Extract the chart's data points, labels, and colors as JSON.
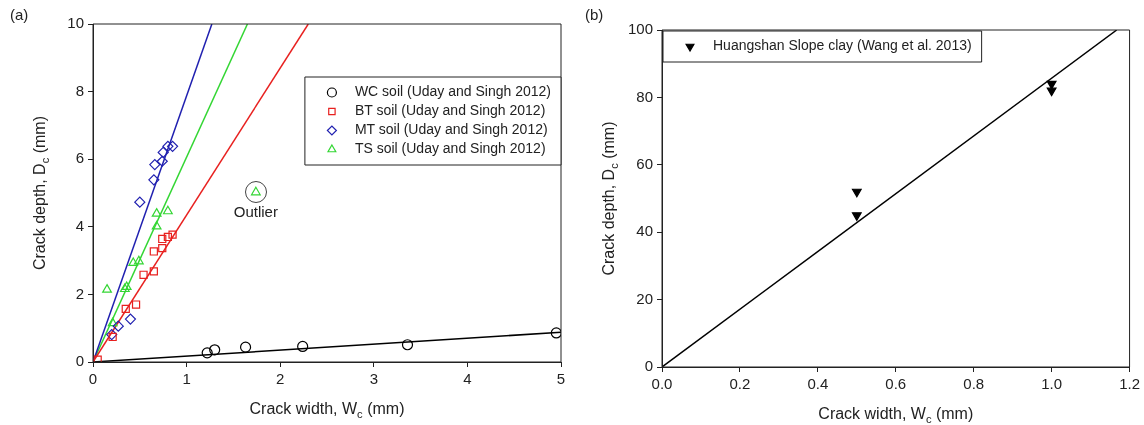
{
  "chart_data": [
    {
      "type": "scatter",
      "xlabel": "Crack width, W$_{c}$ (mm)",
      "ylabel": "Crack depth, D$_{c}$ (mm)",
      "xlim": [
        0,
        5
      ],
      "ylim": [
        0,
        10
      ],
      "xticks": [
        0,
        1,
        2,
        3,
        4,
        5
      ],
      "yticks": [
        0,
        2,
        4,
        6,
        8,
        10
      ],
      "grid": false,
      "legend": "right",
      "annotations": [
        "(a)",
        {
          "text": "Outlier",
          "x": 1.74,
          "y": 5.02
        }
      ],
      "series": [
        {
          "name": "WC soil (Uday and Singh 2012)",
          "color": "#000000",
          "marker": "circle",
          "x": [
            1.22,
            1.3,
            1.63,
            2.24,
            3.36,
            4.95
          ],
          "values": [
            0.27,
            0.36,
            0.44,
            0.46,
            0.51,
            0.86
          ]
        },
        {
          "name": "BT soil (Uday and Singh 2012)",
          "color": "#e8201f",
          "marker": "square",
          "x": [
            0.05,
            0.21,
            0.35,
            0.46,
            0.54,
            0.65,
            0.65,
            0.74,
            0.74,
            0.8,
            0.85
          ],
          "values": [
            0.07,
            0.74,
            1.57,
            1.7,
            2.58,
            2.68,
            3.27,
            3.37,
            3.64,
            3.7,
            3.77
          ]
        },
        {
          "name": "MT soil (Uday and Singh 2012)",
          "color": "#2020b0",
          "marker": "diamond",
          "x": [
            0.2,
            0.27,
            0.4,
            0.5,
            0.65,
            0.66,
            0.74,
            0.75,
            0.8,
            0.85
          ],
          "values": [
            0.81,
            1.06,
            1.27,
            4.73,
            5.39,
            5.84,
            5.94,
            6.2,
            6.38,
            6.38
          ]
        },
        {
          "name": "TS soil (Uday and Singh 2012)",
          "color": "#33d633",
          "marker": "triangle",
          "x": [
            0.21,
            0.15,
            0.34,
            0.36,
            0.43,
            0.49,
            0.68,
            0.68,
            0.8,
            1.74
          ],
          "values": [
            1.15,
            2.14,
            2.16,
            2.22,
            2.93,
            2.98,
            4.01,
            4.39,
            4.46,
            5.02
          ]
        },
        {
          "type": "line",
          "color": "#000000",
          "marker": "none",
          "x": [
            0,
            5
          ],
          "values": [
            0,
            0.88
          ]
        },
        {
          "type": "line",
          "color": "#e8201f",
          "marker": "none",
          "x": [
            0,
            2.3
          ],
          "values": [
            0,
            10
          ]
        },
        {
          "type": "line",
          "color": "#2020b0",
          "marker": "none",
          "x": [
            0,
            1.27
          ],
          "values": [
            0,
            10
          ]
        },
        {
          "type": "line",
          "color": "#33d633",
          "marker": "none",
          "x": [
            0,
            1.65
          ],
          "values": [
            0,
            10
          ]
        }
      ]
    },
    {
      "type": "scatter",
      "xlabel": "Crack width, W$_{c}$ (mm)",
      "ylabel": "Crack depth, D$_{c}$ (mm)",
      "xlim": [
        0,
        1.2
      ],
      "ylim": [
        0,
        100
      ],
      "xticks": [
        {
          "value": 0,
          "label": "0.0"
        },
        {
          "value": 0.2,
          "label": "0.2"
        },
        {
          "value": 0.4,
          "label": "0.4"
        },
        {
          "value": 0.6,
          "label": "0.6"
        },
        {
          "value": 0.8,
          "label": "0.8"
        },
        {
          "value": 1,
          "label": "1.0"
        },
        {
          "value": 1.2,
          "label": "1.2"
        }
      ],
      "yticks": [
        0,
        20,
        40,
        60,
        80,
        100
      ],
      "grid": false,
      "legend": "top left",
      "annotations": [
        "(b)"
      ],
      "series": [
        {
          "name": "Huangshan Slope clay (Wang et al. 2013)",
          "color": "#000000",
          "marker": "triangle-down",
          "x": [
            0.5,
            0.5,
            1,
            1
          ],
          "values": [
            52,
            45,
            84,
            82
          ]
        },
        {
          "type": "line",
          "color": "#000000",
          "marker": "none",
          "x": [
            0,
            1.167
          ],
          "values": [
            0,
            100
          ]
        }
      ]
    }
  ]
}
